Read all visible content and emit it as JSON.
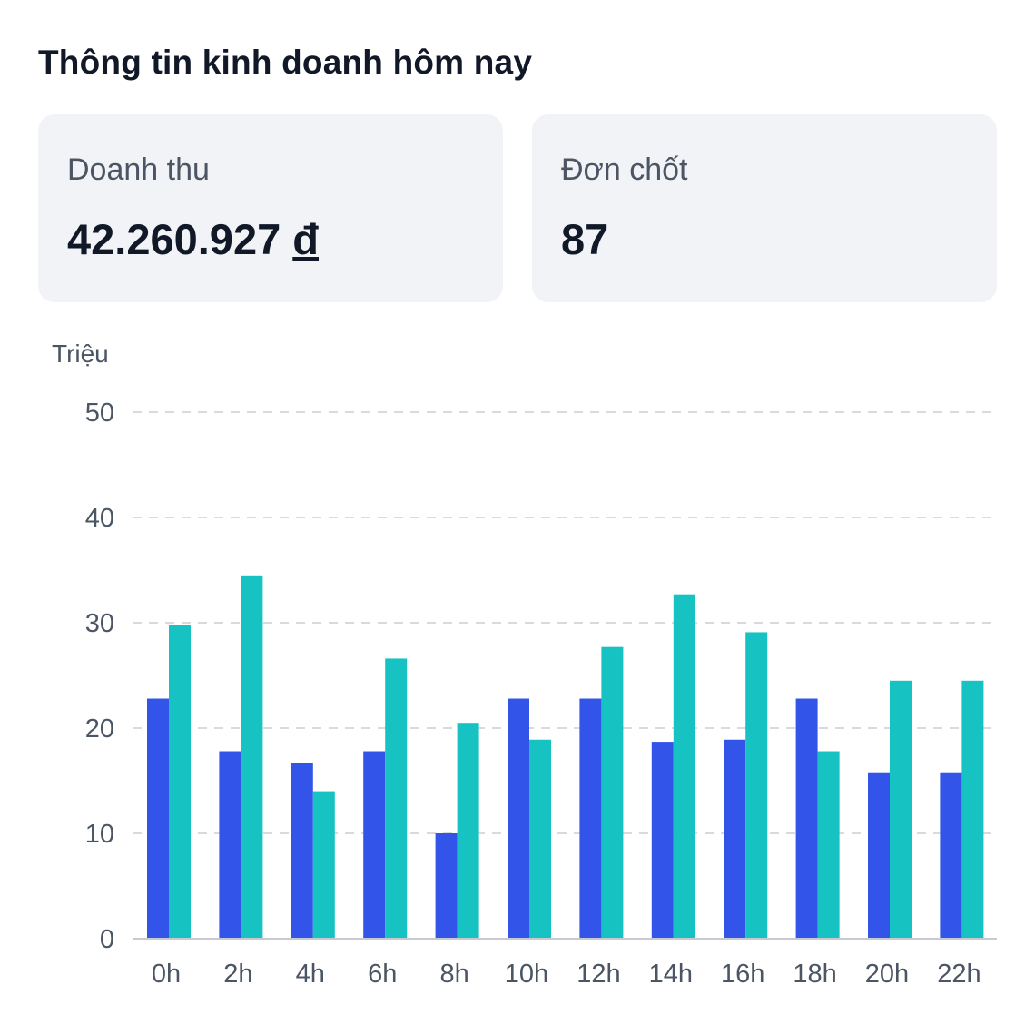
{
  "header": {
    "title": "Thông tin kinh doanh hôm nay"
  },
  "cards": [
    {
      "label": "Doanh thu",
      "value": "42.260.927",
      "currency": "đ"
    },
    {
      "label": "Đơn chốt",
      "value": "87"
    }
  ],
  "colors": {
    "series_1": "#3354e8",
    "series_2": "#16c2c2",
    "grid": "#d8dadf",
    "axis": "#c7cbd1",
    "card_bg": "#f1f3f6"
  },
  "chart_data": {
    "type": "bar",
    "ylabel": "Triệu",
    "ylim": [
      0,
      50
    ],
    "yticks": [
      0,
      10,
      20,
      30,
      40,
      50
    ],
    "grid": true,
    "categories": [
      "0h",
      "2h",
      "4h",
      "6h",
      "8h",
      "10h",
      "12h",
      "14h",
      "16h",
      "18h",
      "20h",
      "22h"
    ],
    "series": [
      {
        "values": [
          22.8,
          17.8,
          16.7,
          17.8,
          10.0,
          22.8,
          22.8,
          18.7,
          18.9,
          22.8,
          15.8,
          15.8
        ]
      },
      {
        "values": [
          29.8,
          34.5,
          14.0,
          26.6,
          20.5,
          18.9,
          27.7,
          32.7,
          29.1,
          17.8,
          24.5,
          24.5
        ]
      }
    ]
  }
}
